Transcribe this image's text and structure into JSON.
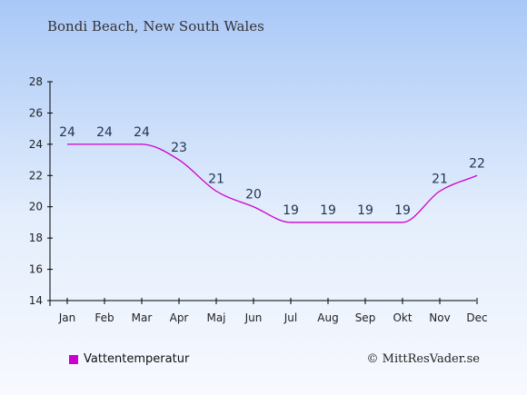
{
  "header": {
    "title": "Bondi Beach, New South Wales"
  },
  "footer": {
    "copyright": "© MittResVader.se"
  },
  "colors": {
    "series": "#cc00cc",
    "axis": "#000000"
  },
  "chart_data": {
    "type": "line",
    "title": "Bondi Beach, New South Wales",
    "xlabel": "",
    "ylabel": "",
    "categories": [
      "Jan",
      "Feb",
      "Mar",
      "Apr",
      "Maj",
      "Jun",
      "Jul",
      "Aug",
      "Sep",
      "Okt",
      "Nov",
      "Dec"
    ],
    "ylim": [
      14,
      28
    ],
    "yticks": [
      14,
      16,
      18,
      20,
      22,
      24,
      26,
      28
    ],
    "grid": false,
    "legend": "bottom-left",
    "series": [
      {
        "name": "Vattentemperatur",
        "values": [
          24,
          24,
          24,
          23,
          21,
          20,
          19,
          19,
          19,
          19,
          21,
          22
        ],
        "labels": [
          "24",
          "24",
          "24",
          "23",
          "21",
          "20",
          "19",
          "19",
          "19",
          "19",
          "21",
          "22"
        ]
      }
    ]
  }
}
